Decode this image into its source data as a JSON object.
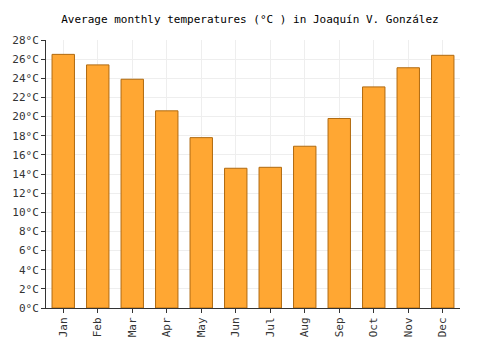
{
  "chart_data": {
    "type": "bar",
    "title": "Average monthly temperatures (°C ) in Joaquín V. González",
    "categories": [
      "Jan",
      "Feb",
      "Mar",
      "Apr",
      "May",
      "Jun",
      "Jul",
      "Aug",
      "Sep",
      "Oct",
      "Nov",
      "Dec"
    ],
    "values": [
      26.5,
      25.4,
      23.9,
      20.6,
      17.8,
      14.6,
      14.7,
      16.9,
      19.8,
      23.1,
      25.1,
      26.4
    ],
    "color": "#ffa733",
    "ylim": [
      0,
      28
    ],
    "yticks": [
      {
        "value": 0,
        "label": "0°C"
      },
      {
        "value": 2,
        "label": "2°C"
      },
      {
        "value": 4,
        "label": "4°C"
      },
      {
        "value": 6,
        "label": "6°C"
      },
      {
        "value": 8,
        "label": "8°C"
      },
      {
        "value": 10,
        "label": "10°C"
      },
      {
        "value": 12,
        "label": "12°C"
      },
      {
        "value": 14,
        "label": "14°C"
      },
      {
        "value": 16,
        "label": "16°C"
      },
      {
        "value": 18,
        "label": "18°C"
      },
      {
        "value": 20,
        "label": "20°C"
      },
      {
        "value": 22,
        "label": "22°C"
      },
      {
        "value": 24,
        "label": "24°C"
      },
      {
        "value": 26,
        "label": "26°C"
      },
      {
        "value": 28,
        "label": "28°C"
      }
    ],
    "grid": true
  }
}
